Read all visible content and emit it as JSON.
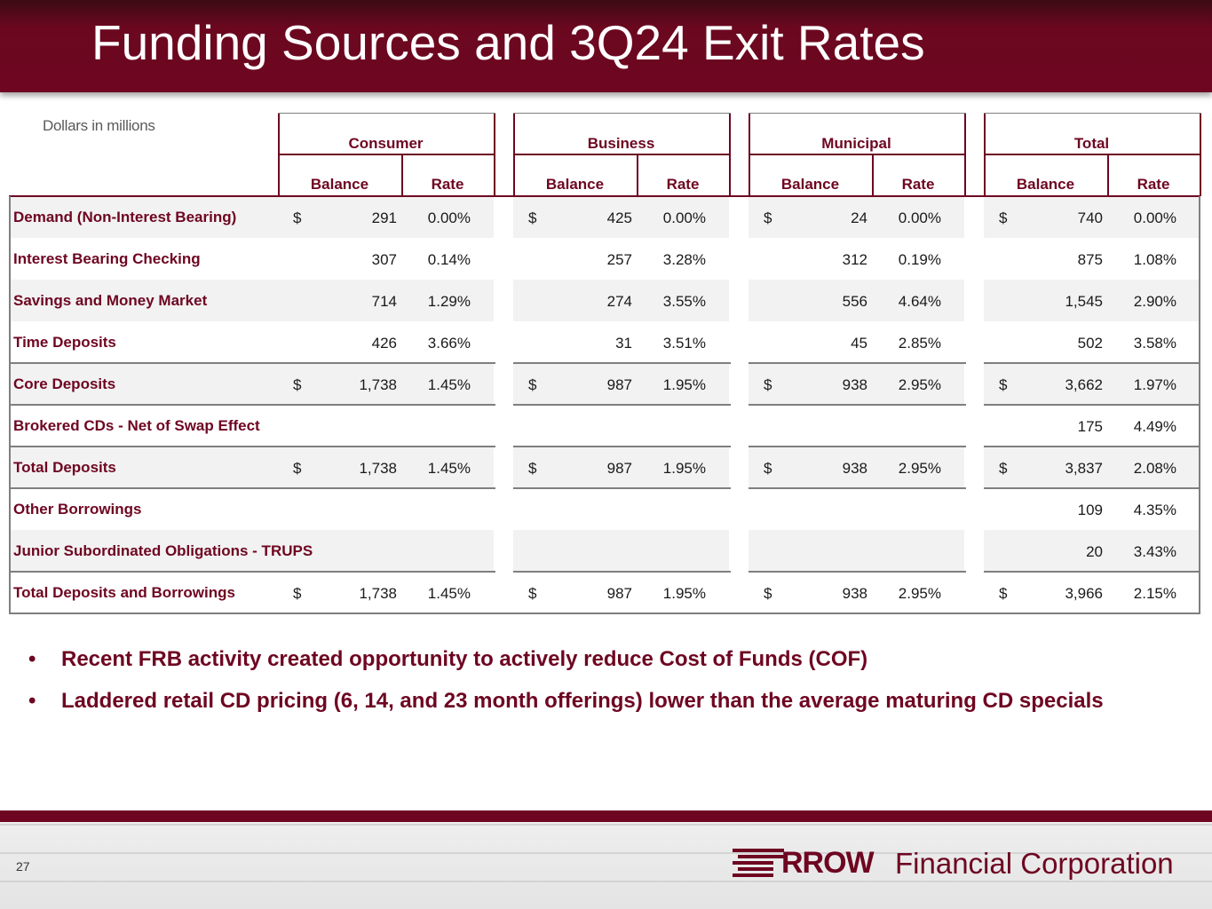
{
  "slide": {
    "title": "Funding Sources and 3Q24 Exit Rates",
    "units_note": "Dollars in millions",
    "page_number": "27"
  },
  "table": {
    "groups": [
      "Consumer",
      "Business",
      "Municipal",
      "Total"
    ],
    "subheads": {
      "balance": "Balance",
      "rate": "Rate"
    },
    "rows": [
      {
        "label": "Demand (Non-Interest Bearing)",
        "dollar": true,
        "cells": [
          [
            "291",
            "0.00%"
          ],
          [
            "425",
            "0.00%"
          ],
          [
            "24",
            "0.00%"
          ],
          [
            "740",
            "0.00%"
          ]
        ]
      },
      {
        "label": "Interest Bearing Checking",
        "dollar": false,
        "cells": [
          [
            "307",
            "0.14%"
          ],
          [
            "257",
            "3.28%"
          ],
          [
            "312",
            "0.19%"
          ],
          [
            "875",
            "1.08%"
          ]
        ]
      },
      {
        "label": "Savings and Money Market",
        "dollar": false,
        "cells": [
          [
            "714",
            "1.29%"
          ],
          [
            "274",
            "3.55%"
          ],
          [
            "556",
            "4.64%"
          ],
          [
            "1,545",
            "2.90%"
          ]
        ]
      },
      {
        "label": "Time Deposits",
        "dollar": false,
        "cells": [
          [
            "426",
            "3.66%"
          ],
          [
            "31",
            "3.51%"
          ],
          [
            "45",
            "2.85%"
          ],
          [
            "502",
            "3.58%"
          ]
        ]
      },
      {
        "label": "Core Deposits",
        "dollar": true,
        "cells": [
          [
            "1,738",
            "1.45%"
          ],
          [
            "987",
            "1.95%"
          ],
          [
            "938",
            "2.95%"
          ],
          [
            "3,662",
            "1.97%"
          ]
        ]
      },
      {
        "label": "Brokered CDs - Net of Swap Effect",
        "dollar": false,
        "cells": [
          [
            "",
            ""
          ],
          [
            "",
            ""
          ],
          [
            "",
            ""
          ],
          [
            "175",
            "4.49%"
          ]
        ]
      },
      {
        "label": "Total Deposits",
        "dollar": true,
        "cells": [
          [
            "1,738",
            "1.45%"
          ],
          [
            "987",
            "1.95%"
          ],
          [
            "938",
            "2.95%"
          ],
          [
            "3,837",
            "2.08%"
          ]
        ]
      },
      {
        "label": "Other Borrowings",
        "dollar": false,
        "cells": [
          [
            "",
            ""
          ],
          [
            "",
            ""
          ],
          [
            "",
            ""
          ],
          [
            "109",
            "4.35%"
          ]
        ]
      },
      {
        "label": "Junior Subordinated Obligations - TRUPS",
        "dollar": false,
        "cells": [
          [
            "",
            ""
          ],
          [
            "",
            ""
          ],
          [
            "",
            ""
          ],
          [
            "20",
            "3.43%"
          ]
        ]
      },
      {
        "label": "Total Deposits and Borrowings",
        "dollar": true,
        "cells": [
          [
            "1,738",
            "1.45%"
          ],
          [
            "987",
            "1.95%"
          ],
          [
            "938",
            "2.95%"
          ],
          [
            "3,966",
            "2.15%"
          ]
        ]
      }
    ],
    "dollar_sign": "$"
  },
  "bullets": [
    "Recent FRB activity created opportunity to actively reduce Cost of Funds (COF)",
    "Laddered retail CD pricing (6, 14, and 23 month offerings) lower than the average maturing CD specials"
  ],
  "bullet_glyph": "•",
  "logo": {
    "word": "RROW",
    "company": "Financial Corporation"
  },
  "colors": {
    "brand": "#6e0621",
    "row_alt": "#f2f2f2"
  }
}
